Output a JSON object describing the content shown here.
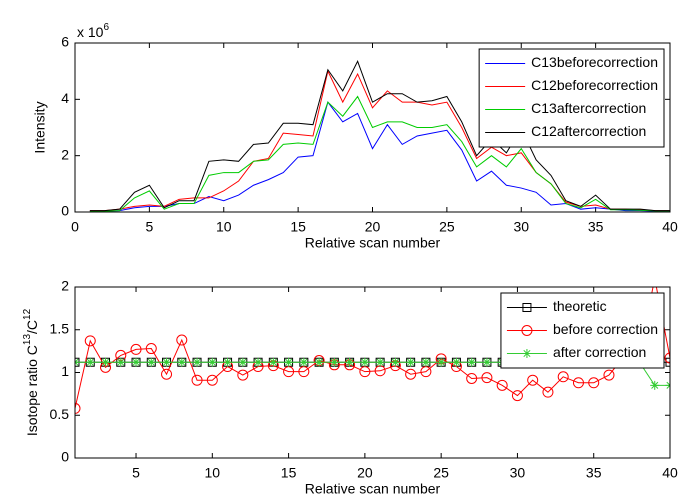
{
  "chart_data": [
    {
      "type": "line",
      "xlabel": "Relative scan number",
      "ylabel": "Intensity",
      "y_multiplier": "x 10",
      "y_multiplier_exponent": "6",
      "x": [
        1,
        2,
        3,
        4,
        5,
        6,
        7,
        8,
        9,
        10,
        11,
        12,
        13,
        14,
        15,
        16,
        17,
        18,
        19,
        20,
        21,
        22,
        23,
        24,
        25,
        26,
        27,
        28,
        29,
        30,
        31,
        32,
        33,
        34,
        35,
        36,
        37,
        38,
        39,
        40
      ],
      "xlim": [
        0,
        40
      ],
      "xticks": [
        0,
        5,
        10,
        15,
        20,
        25,
        30,
        35,
        40
      ],
      "ylim": [
        0,
        6
      ],
      "yticks": [
        0,
        2,
        4,
        6
      ],
      "grid": false,
      "legend": "upper right",
      "series": [
        {
          "name": "C13beforecorrection",
          "color": "#0000ff",
          "marker": "none",
          "values": [
            0.02,
            0.03,
            0.05,
            0.15,
            0.2,
            0.2,
            0.3,
            0.3,
            0.55,
            0.4,
            0.6,
            0.95,
            1.15,
            1.4,
            1.95,
            2.0,
            3.9,
            3.2,
            3.5,
            2.25,
            3.1,
            2.4,
            2.7,
            2.8,
            2.9,
            2.2,
            1.1,
            1.45,
            0.95,
            0.85,
            0.7,
            0.25,
            0.3,
            0.1,
            0.15,
            0.1,
            0.05,
            0.05,
            0.03,
            0.02
          ]
        },
        {
          "name": "C12beforecorrection",
          "color": "#ff0000",
          "marker": "none",
          "values": [
            0.05,
            0.05,
            0.1,
            0.2,
            0.25,
            0.2,
            0.45,
            0.5,
            0.5,
            0.75,
            1.1,
            1.8,
            1.9,
            2.8,
            2.75,
            2.7,
            5.0,
            3.9,
            4.9,
            3.7,
            4.3,
            3.9,
            3.9,
            3.8,
            3.9,
            3.0,
            1.9,
            2.3,
            2.0,
            2.1,
            1.4,
            1.0,
            0.35,
            0.2,
            0.25,
            0.1,
            0.1,
            0.08,
            0.05,
            0.05
          ]
        },
        {
          "name": "C13aftercorrection",
          "color": "#00cc00",
          "marker": "none",
          "values": [
            0.02,
            0.03,
            0.05,
            0.5,
            0.75,
            0.1,
            0.3,
            0.3,
            1.3,
            1.4,
            1.4,
            1.8,
            1.85,
            2.4,
            2.45,
            2.4,
            3.9,
            3.4,
            4.1,
            3.0,
            3.2,
            3.2,
            3.0,
            3.0,
            3.1,
            2.5,
            1.6,
            2.0,
            1.6,
            2.25,
            1.4,
            1.0,
            0.3,
            0.15,
            0.45,
            0.08,
            0.08,
            0.06,
            0.04,
            0.04
          ]
        },
        {
          "name": "C12aftercorrection",
          "color": "#000000",
          "marker": "none",
          "values": [
            0.05,
            0.05,
            0.1,
            0.7,
            0.95,
            0.15,
            0.4,
            0.4,
            1.8,
            1.85,
            1.8,
            2.4,
            2.45,
            3.15,
            3.15,
            3.1,
            5.05,
            4.3,
            5.35,
            3.9,
            4.2,
            4.2,
            3.9,
            3.95,
            4.1,
            3.2,
            2.0,
            2.6,
            2.1,
            2.95,
            1.85,
            1.3,
            0.4,
            0.2,
            0.6,
            0.1,
            0.1,
            0.1,
            0.05,
            0.05
          ]
        }
      ]
    },
    {
      "type": "line",
      "xlabel": "Relative scan number",
      "ylabel_parts": [
        "Isotope ratio C",
        "13",
        "/C",
        "12"
      ],
      "x": [
        1,
        2,
        3,
        4,
        5,
        6,
        7,
        8,
        9,
        10,
        11,
        12,
        13,
        14,
        15,
        16,
        17,
        18,
        19,
        20,
        21,
        22,
        23,
        24,
        25,
        26,
        27,
        28,
        29,
        30,
        31,
        32,
        33,
        34,
        35,
        36,
        37,
        38,
        39,
        40
      ],
      "xlim": [
        1,
        40
      ],
      "xticks": [
        5,
        10,
        15,
        20,
        25,
        30,
        35,
        40
      ],
      "ylim": [
        0,
        2
      ],
      "yticks": [
        0,
        0.5,
        1,
        1.5,
        2
      ],
      "grid": false,
      "legend": "upper right",
      "series": [
        {
          "name": "theoretic",
          "color": "#000000",
          "marker": "square",
          "values": [
            1.12,
            1.12,
            1.12,
            1.12,
            1.12,
            1.12,
            1.12,
            1.12,
            1.12,
            1.12,
            1.12,
            1.12,
            1.12,
            1.12,
            1.12,
            1.12,
            1.12,
            1.12,
            1.12,
            1.12,
            1.12,
            1.12,
            1.12,
            1.12,
            1.12,
            1.12,
            1.12,
            1.12,
            1.12,
            1.12,
            1.12,
            1.12,
            1.12,
            1.12,
            1.12,
            1.12,
            1.12,
            1.12,
            1.12,
            1.12
          ]
        },
        {
          "name": "before correction",
          "color": "#ff0000",
          "marker": "circle",
          "values": [
            0.58,
            1.37,
            1.06,
            1.2,
            1.27,
            1.28,
            0.98,
            1.38,
            0.91,
            0.91,
            1.07,
            0.97,
            1.07,
            1.08,
            1.01,
            1.01,
            1.14,
            1.09,
            1.09,
            1.01,
            1.02,
            1.08,
            0.98,
            1.01,
            1.16,
            1.07,
            0.93,
            0.94,
            0.85,
            0.73,
            0.91,
            0.77,
            0.95,
            0.88,
            0.88,
            0.97,
            1.19,
            1.21,
            2.1,
            1.17
          ]
        },
        {
          "name": "after correction",
          "color": "#33cc33",
          "marker": "star",
          "values": [
            1.12,
            1.12,
            1.12,
            1.12,
            1.12,
            1.12,
            1.12,
            1.12,
            1.12,
            1.12,
            1.12,
            1.12,
            1.12,
            1.12,
            1.12,
            1.12,
            1.12,
            1.12,
            1.12,
            1.12,
            1.12,
            1.12,
            1.12,
            1.12,
            1.12,
            1.12,
            1.12,
            1.12,
            1.12,
            1.12,
            1.12,
            1.12,
            1.12,
            1.12,
            1.12,
            1.12,
            1.12,
            1.12,
            0.85,
            0.85
          ]
        }
      ]
    }
  ]
}
